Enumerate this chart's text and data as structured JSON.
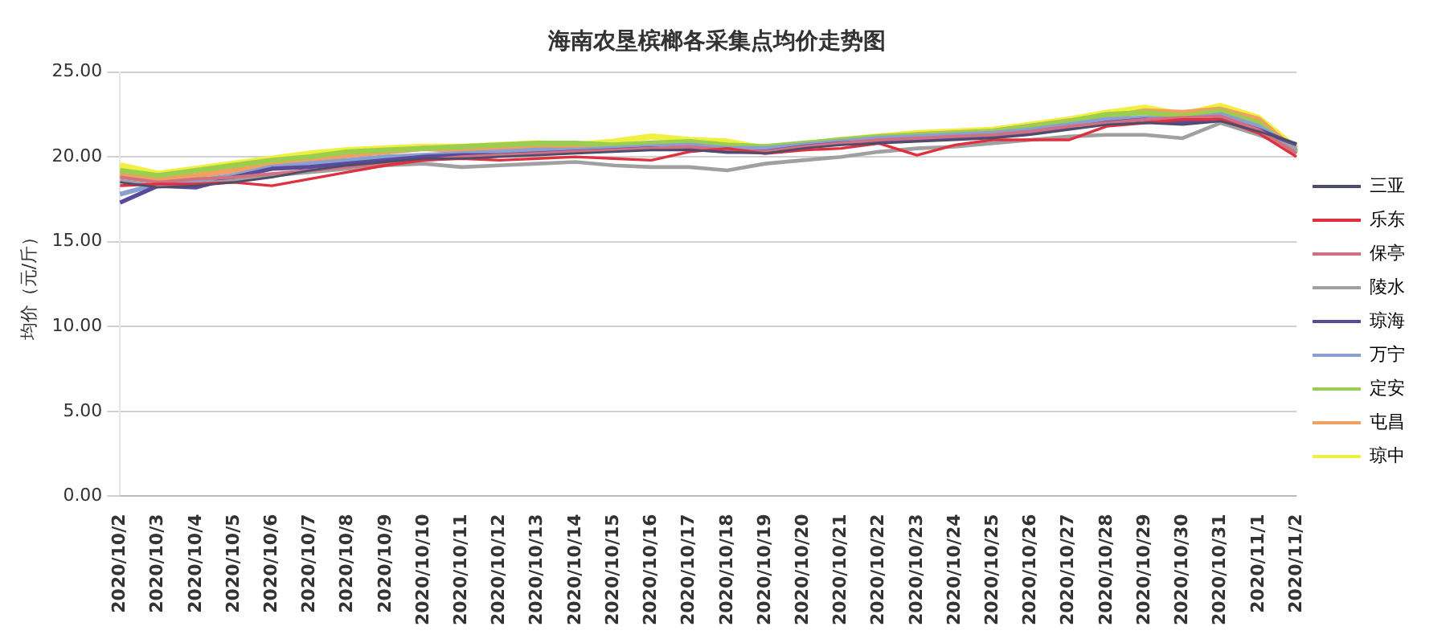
{
  "chart_data": {
    "type": "line",
    "title": "海南农垦槟榔各采集点均价走势图",
    "ylabel": "均价（元/斤）",
    "categories": [
      "2020/10/2",
      "2020/10/3",
      "2020/10/4",
      "2020/10/5",
      "2020/10/6",
      "2020/10/7",
      "2020/10/8",
      "2020/10/9",
      "2020/10/10",
      "2020/10/11",
      "2020/10/12",
      "2020/10/13",
      "2020/10/14",
      "2020/10/15",
      "2020/10/16",
      "2020/10/17",
      "2020/10/18",
      "2020/10/19",
      "2020/10/20",
      "2020/10/21",
      "2020/10/22",
      "2020/10/23",
      "2020/10/24",
      "2020/10/25",
      "2020/10/26",
      "2020/10/27",
      "2020/10/28",
      "2020/10/29",
      "2020/10/30",
      "2020/10/31",
      "2020/11/1",
      "2020/11/2"
    ],
    "ylim": [
      0,
      25
    ],
    "yticks": [
      {
        "value": 0,
        "label": "0.00"
      },
      {
        "value": 5,
        "label": "5.00"
      },
      {
        "value": 10,
        "label": "10.00"
      },
      {
        "value": 15,
        "label": "15.00"
      },
      {
        "value": 20,
        "label": "20.00"
      },
      {
        "value": 25,
        "label": "25.00"
      }
    ],
    "grid": "y",
    "legend": "right",
    "marker": "none",
    "line_style": "solid",
    "series": [
      {
        "name": "三亚",
        "color": "#4d4d6b",
        "values": [
          18.5,
          18.2,
          18.3,
          18.5,
          18.8,
          19.2,
          19.5,
          19.7,
          19.9,
          19.9,
          20.0,
          20.1,
          20.2,
          20.3,
          20.4,
          20.4,
          20.3,
          20.2,
          20.5,
          20.7,
          20.8,
          20.9,
          21.0,
          21.1,
          21.3,
          21.6,
          21.9,
          22.0,
          21.9,
          22.1,
          21.5,
          20.8
        ]
      },
      {
        "name": "乐东",
        "color": "#e03040",
        "values": [
          18.3,
          18.4,
          18.4,
          18.5,
          18.3,
          18.7,
          19.1,
          19.5,
          19.8,
          19.9,
          19.8,
          19.9,
          20.0,
          19.9,
          19.8,
          20.3,
          20.5,
          20.2,
          20.4,
          20.5,
          20.8,
          20.1,
          20.7,
          21.0,
          21.0,
          21.0,
          21.8,
          22.0,
          22.2,
          22.2,
          21.4,
          20.0
        ]
      },
      {
        "name": "保亭",
        "color": "#d07080",
        "values": [
          18.8,
          18.5,
          18.7,
          18.8,
          19.0,
          19.2,
          19.4,
          19.6,
          19.8,
          20.0,
          20.1,
          20.2,
          20.3,
          20.4,
          20.5,
          20.6,
          20.4,
          20.3,
          20.6,
          20.8,
          21.0,
          21.1,
          21.2,
          21.3,
          21.5,
          21.8,
          22.0,
          22.2,
          22.3,
          22.4,
          21.6,
          20.2
        ]
      },
      {
        "name": "陵水",
        "color": "#a0a0a0",
        "values": [
          18.6,
          18.3,
          18.4,
          18.6,
          18.9,
          19.1,
          19.3,
          19.5,
          19.6,
          19.4,
          19.5,
          19.6,
          19.7,
          19.5,
          19.4,
          19.4,
          19.2,
          19.6,
          19.8,
          20.0,
          20.3,
          20.5,
          20.6,
          20.8,
          21.0,
          21.2,
          21.3,
          21.3,
          21.1,
          22.0,
          21.3,
          20.5
        ]
      },
      {
        "name": "琼海",
        "color": "#5a4a9a",
        "values": [
          17.3,
          18.3,
          18.2,
          18.8,
          19.3,
          19.4,
          19.6,
          19.8,
          20.0,
          20.1,
          20.1,
          20.2,
          20.3,
          20.4,
          20.5,
          20.5,
          20.3,
          20.3,
          20.6,
          20.8,
          20.9,
          21.0,
          21.1,
          21.2,
          21.4,
          21.7,
          22.0,
          22.2,
          22.0,
          22.3,
          21.6,
          20.7
        ]
      },
      {
        "name": "万宁",
        "color": "#8aa0d0",
        "values": [
          17.8,
          18.4,
          18.6,
          18.9,
          19.4,
          19.6,
          19.8,
          20.0,
          20.1,
          20.2,
          20.3,
          20.4,
          20.4,
          20.5,
          20.6,
          20.7,
          20.5,
          20.5,
          20.7,
          20.9,
          21.1,
          21.2,
          21.3,
          21.4,
          21.6,
          21.9,
          22.2,
          22.3,
          22.2,
          22.5,
          21.8,
          20.4
        ]
      },
      {
        "name": "定安",
        "color": "#9acd50",
        "values": [
          19.2,
          18.9,
          19.2,
          19.5,
          19.8,
          20.0,
          20.3,
          20.4,
          20.5,
          20.6,
          20.7,
          20.8,
          20.8,
          20.7,
          20.8,
          20.9,
          20.7,
          20.6,
          20.8,
          21.0,
          21.2,
          21.3,
          21.4,
          21.5,
          21.8,
          22.1,
          22.5,
          22.6,
          22.4,
          22.7,
          22.0,
          20.2
        ]
      },
      {
        "name": "屯昌",
        "color": "#f0a060",
        "values": [
          19.0,
          18.7,
          18.9,
          19.2,
          19.5,
          19.8,
          20.1,
          20.3,
          20.5,
          20.4,
          20.5,
          20.6,
          20.7,
          20.6,
          20.8,
          20.8,
          20.6,
          20.5,
          20.7,
          20.9,
          21.1,
          21.3,
          21.4,
          21.5,
          21.8,
          22.1,
          22.3,
          22.7,
          22.6,
          22.8,
          22.2,
          20.3
        ]
      },
      {
        "name": "琼中",
        "color": "#f0f040",
        "values": [
          19.5,
          19.0,
          19.3,
          19.6,
          19.9,
          20.2,
          20.4,
          20.5,
          20.6,
          20.6,
          20.7,
          20.8,
          20.7,
          20.9,
          21.2,
          21.0,
          20.9,
          20.5,
          20.7,
          21.0,
          21.2,
          21.4,
          21.5,
          21.6,
          21.9,
          22.2,
          22.6,
          22.9,
          22.5,
          23.0,
          22.3,
          20.5
        ]
      }
    ]
  }
}
